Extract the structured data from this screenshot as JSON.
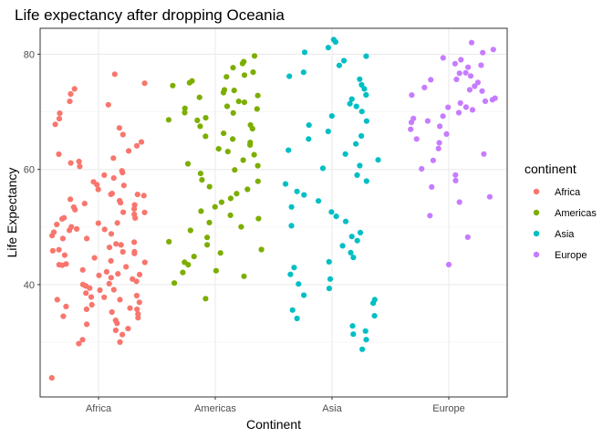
{
  "chart_data": {
    "type": "scatter",
    "title": "Life expectancy after dropping Oceania",
    "xlabel": "Continent",
    "ylabel": "Life Expectancy",
    "categories": [
      "Africa",
      "Americas",
      "Asia",
      "Europe"
    ],
    "ylim": [
      20.5,
      84.5
    ],
    "yticks": [
      40,
      60,
      80
    ],
    "grid": true,
    "jitter_width": 0.4,
    "legend": {
      "title": "continent",
      "placement": "right"
    },
    "series": [
      {
        "name": "Africa",
        "color": "#F8766D",
        "values": [
          23.6,
          29.9,
          30.0,
          30.3,
          31.3,
          32.0,
          32.5,
          33.0,
          33.5,
          33.8,
          34.1,
          34.5,
          34.8,
          35.2,
          35.5,
          35.8,
          36.0,
          36.3,
          36.6,
          36.9,
          37.2,
          37.5,
          37.8,
          38.0,
          38.3,
          38.6,
          38.9,
          39.2,
          39.5,
          39.8,
          40.0,
          40.3,
          40.6,
          40.9,
          41.2,
          41.5,
          41.8,
          42.0,
          42.3,
          42.6,
          42.9,
          43.2,
          43.5,
          43.8,
          44.0,
          44.3,
          44.6,
          44.9,
          45.2,
          45.5,
          45.8,
          46.0,
          46.3,
          46.6,
          46.9,
          47.2,
          47.5,
          47.8,
          48.0,
          48.3,
          48.6,
          48.9,
          49.2,
          49.5,
          49.8,
          50.0,
          50.3,
          50.6,
          50.9,
          51.2,
          51.5,
          51.8,
          52.0,
          52.3,
          52.6,
          52.9,
          53.2,
          53.5,
          53.8,
          54.0,
          54.3,
          54.6,
          54.9,
          55.2,
          55.5,
          55.8,
          56.0,
          56.5,
          57.0,
          57.5,
          58.0,
          58.5,
          59.0,
          59.5,
          60.0,
          60.5,
          61.0,
          61.5,
          62.0,
          62.5,
          63.0,
          64.0,
          65.0,
          66.0,
          67.0,
          68.0,
          69.0,
          70.0,
          71.0,
          72.0,
          73.0,
          74.0,
          75.0,
          76.4
        ]
      },
      {
        "name": "Americas",
        "color": "#7CAE00",
        "values": [
          37.6,
          40.4,
          41.2,
          41.9,
          42.6,
          43.4,
          44.1,
          44.8,
          45.5,
          46.3,
          47.0,
          47.7,
          48.4,
          49.2,
          49.9,
          50.6,
          51.3,
          52.0,
          52.8,
          53.5,
          54.2,
          54.9,
          55.6,
          56.3,
          57.0,
          57.7,
          58.4,
          59.1,
          59.8,
          60.5,
          61.1,
          61.8,
          62.4,
          63.0,
          63.6,
          64.2,
          64.8,
          65.3,
          65.9,
          66.4,
          66.9,
          67.4,
          67.9,
          68.3,
          68.8,
          69.2,
          69.6,
          70.0,
          70.4,
          70.8,
          71.2,
          71.6,
          72.0,
          72.4,
          72.8,
          73.2,
          73.6,
          74.0,
          74.5,
          75.0,
          75.5,
          76.0,
          76.5,
          77.1,
          77.7,
          78.3,
          78.9,
          79.7
        ]
      },
      {
        "name": "Asia",
        "color": "#00BFC4",
        "values": [
          28.8,
          30.3,
          31.2,
          32.1,
          33.0,
          33.9,
          34.8,
          35.7,
          36.6,
          37.5,
          38.4,
          39.3,
          40.2,
          41.1,
          42.0,
          42.9,
          43.8,
          44.7,
          45.6,
          46.5,
          47.4,
          48.3,
          49.2,
          50.1,
          51.0,
          51.9,
          52.8,
          53.7,
          54.6,
          55.5,
          56.4,
          57.3,
          58.2,
          59.1,
          60.0,
          60.9,
          61.8,
          62.7,
          63.5,
          64.3,
          65.1,
          65.9,
          66.7,
          67.5,
          68.3,
          69.1,
          69.9,
          70.7,
          71.5,
          72.3,
          73.1,
          73.9,
          74.7,
          75.5,
          76.3,
          77.1,
          77.9,
          78.7,
          79.5,
          80.3,
          81.2,
          82.0,
          82.6
        ]
      },
      {
        "name": "Europe",
        "color": "#C77CFF",
        "values": [
          43.6,
          48.1,
          52.1,
          54.3,
          55.2,
          56.9,
          58.0,
          59.2,
          60.3,
          61.5,
          62.6,
          63.7,
          64.8,
          65.5,
          66.2,
          66.9,
          67.5,
          68.0,
          68.5,
          69.0,
          69.4,
          69.8,
          70.2,
          70.6,
          71.0,
          71.4,
          71.8,
          72.2,
          72.6,
          73.0,
          73.4,
          73.8,
          74.2,
          74.6,
          75.0,
          75.4,
          75.8,
          76.2,
          76.6,
          77.0,
          77.5,
          78.0,
          78.5,
          79.0,
          79.6,
          80.2,
          80.9,
          81.8
        ]
      }
    ]
  }
}
